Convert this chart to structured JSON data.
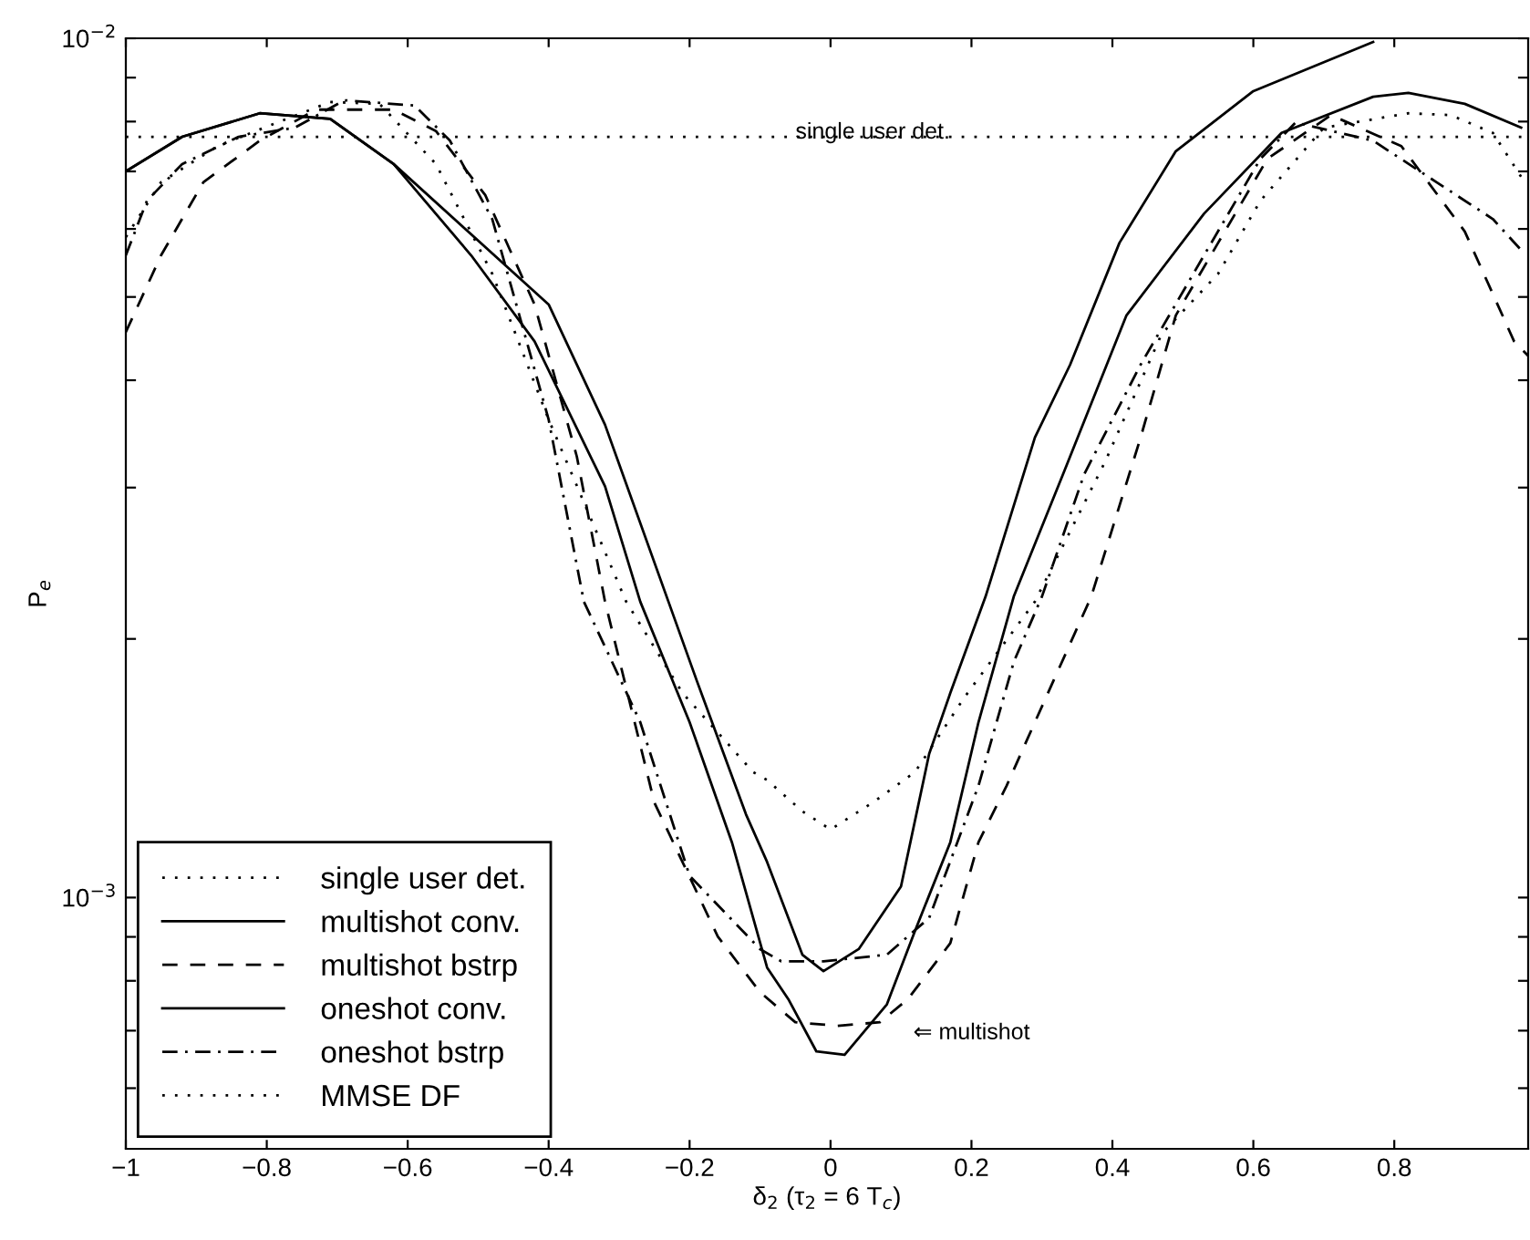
{
  "chart_data": {
    "type": "line",
    "xlabel": "δ$_{2}$ (τ$_{2}$ = 6 T$_{c}$)",
    "ylabel": "P$_{e}$",
    "log": "y",
    "grid": false,
    "legend": "bottom left",
    "marker": "none",
    "xlim": [
      -1,
      0.99
    ],
    "xticks": [
      {
        "value": -1,
        "label": "−1"
      },
      {
        "value": -0.8,
        "label": "−0.8"
      },
      {
        "value": -0.6,
        "label": "−0.6"
      },
      {
        "value": -0.4,
        "label": "−0.4"
      },
      {
        "value": -0.2,
        "label": "−0.2"
      },
      0,
      0.2,
      0.4,
      0.6,
      0.8
    ],
    "ylim": [
      0.00051,
      0.01
    ],
    "yticks": [
      {
        "value": 0.0006,
        "label": null
      },
      {
        "value": 0.0007,
        "label": null
      },
      {
        "value": 0.0008,
        "label": null
      },
      {
        "value": 0.0009,
        "label": null
      },
      {
        "value": 0.001,
        "label": "10$^{−3}$"
      },
      {
        "value": 0.002,
        "label": null
      },
      {
        "value": 0.003,
        "label": null
      },
      {
        "value": 0.004,
        "label": null
      },
      {
        "value": 0.005,
        "label": null
      },
      {
        "value": 0.006,
        "label": null
      },
      {
        "value": 0.007,
        "label": null
      },
      {
        "value": 0.008,
        "label": null
      },
      {
        "value": 0.009,
        "label": null
      },
      {
        "value": 0.01,
        "label": "10$^{−2}$"
      }
    ],
    "annotations": [
      "single user det.",
      "⇐ multishot"
    ],
    "series": [
      {
        "name": "single user det.",
        "color": "#000000",
        "line_style": "dotted",
        "x": [
          -1,
          0.99
        ],
        "values": [
          0.00768,
          0.00768
        ]
      },
      {
        "name": "multishot conv.",
        "color": "#000000",
        "line_style": "solid",
        "x": [
          -1,
          -0.92,
          -0.81,
          -0.71,
          -0.62,
          -0.51,
          -0.42,
          -0.32,
          -0.27,
          -0.2,
          -0.14,
          -0.09,
          -0.06,
          -0.02,
          0.02,
          0.08,
          0.12,
          0.17,
          0.21,
          0.26,
          0.33,
          0.42,
          0.53,
          0.64,
          0.77,
          0.82,
          0.9,
          0.98
        ],
        "values": [
          0.007,
          0.00768,
          0.00818,
          0.00806,
          0.00714,
          0.00559,
          0.00444,
          0.00301,
          0.00221,
          0.0016,
          0.00116,
          0.000829,
          0.000762,
          0.000662,
          0.000656,
          0.000751,
          0.000915,
          0.00116,
          0.0016,
          0.00224,
          0.00311,
          0.00476,
          0.00625,
          0.00776,
          0.00855,
          0.00864,
          0.00839,
          0.00787
        ]
      },
      {
        "name": "multishot bstrp",
        "color": "#000000",
        "line_style": "dashed",
        "x": [
          -1,
          -0.95,
          -0.89,
          -0.81,
          -0.73,
          -0.62,
          -0.56,
          -0.49,
          -0.42,
          -0.36,
          -0.32,
          -0.25,
          -0.16,
          -0.1,
          -0.05,
          0.01,
          0.07,
          0.11,
          0.17,
          0.21,
          0.25,
          0.29,
          0.37,
          0.44,
          0.49,
          0.55,
          0.62,
          0.71,
          0.81,
          0.9,
          0.97,
          0.99
        ],
        "values": [
          0.00455,
          0.00559,
          0.0068,
          0.0076,
          0.00826,
          0.00826,
          0.0078,
          0.00657,
          0.0049,
          0.00326,
          0.00221,
          0.00129,
          0.000901,
          0.000776,
          0.000716,
          0.000709,
          0.000716,
          0.000762,
          0.000885,
          0.00116,
          0.00135,
          0.0016,
          0.00224,
          0.00343,
          0.00476,
          0.00578,
          0.00724,
          0.00814,
          0.00749,
          0.00596,
          0.00444,
          0.00427
        ]
      },
      {
        "name": "oneshot conv.",
        "color": "#000000",
        "line_style": "solid",
        "x": [
          -1,
          -0.92,
          -0.81,
          -0.71,
          -0.62,
          -0.4,
          -0.32,
          -0.23,
          -0.19,
          -0.12,
          -0.09,
          -0.04,
          -0.01,
          0.04,
          0.1,
          0.14,
          0.17,
          0.22,
          0.29,
          0.34,
          0.41,
          0.49,
          0.6,
          0.77
        ],
        "values": [
          0.007,
          0.00768,
          0.00818,
          0.00806,
          0.00714,
          0.0049,
          0.00355,
          0.00221,
          0.00179,
          0.00125,
          0.0011,
          0.000858,
          0.000821,
          0.000871,
          0.00103,
          0.00147,
          0.00173,
          0.00224,
          0.00343,
          0.00417,
          0.00578,
          0.00739,
          0.00868,
          0.0099
        ]
      },
      {
        "name": "oneshot bstrp",
        "color": "#000000",
        "line_style": "dashdot",
        "x": [
          -1,
          -0.97,
          -0.92,
          -0.84,
          -0.76,
          -0.69,
          -0.59,
          -0.54,
          -0.48,
          -0.4,
          -0.35,
          -0.27,
          -0.2,
          -0.1,
          -0.07,
          -0.01,
          0.08,
          0.14,
          0.21,
          0.26,
          0.3,
          0.36,
          0.44,
          0.53,
          0.61,
          0.66,
          0.77,
          0.86,
          0.94,
          0.98
        ],
        "values": [
          0.00559,
          0.00647,
          0.00714,
          0.00768,
          0.00787,
          0.00847,
          0.00835,
          0.0076,
          0.00616,
          0.0036,
          0.00221,
          0.0016,
          0.00106,
          0.000871,
          0.000843,
          0.000843,
          0.000858,
          0.000947,
          0.00135,
          0.00188,
          0.00224,
          0.00311,
          0.00417,
          0.00559,
          0.00724,
          0.00798,
          0.0076,
          0.0068,
          0.00616,
          0.00567
        ]
      },
      {
        "name": "MMSE DF",
        "color": "#000000",
        "line_style": "dotted",
        "x": [
          -1,
          -0.95,
          -0.87,
          -0.79,
          -0.71,
          -0.64,
          -0.56,
          -0.48,
          -0.4,
          -0.29,
          -0.21,
          -0.11,
          -0.09,
          -0.04,
          0.0,
          0.06,
          0.12,
          0.19,
          0.29,
          0.39,
          0.47,
          0.55,
          0.61,
          0.7,
          0.82,
          0.88,
          0.94,
          0.98
        ],
        "values": [
          0.00587,
          0.0068,
          0.00749,
          0.00795,
          0.00843,
          0.00839,
          0.00714,
          0.00532,
          0.0036,
          0.00221,
          0.00173,
          0.0014,
          0.00137,
          0.00126,
          0.0012,
          0.00129,
          0.0014,
          0.00171,
          0.00221,
          0.00322,
          0.00453,
          0.00532,
          0.00647,
          0.00787,
          0.00818,
          0.00814,
          0.00776,
          0.0069
        ]
      }
    ]
  }
}
